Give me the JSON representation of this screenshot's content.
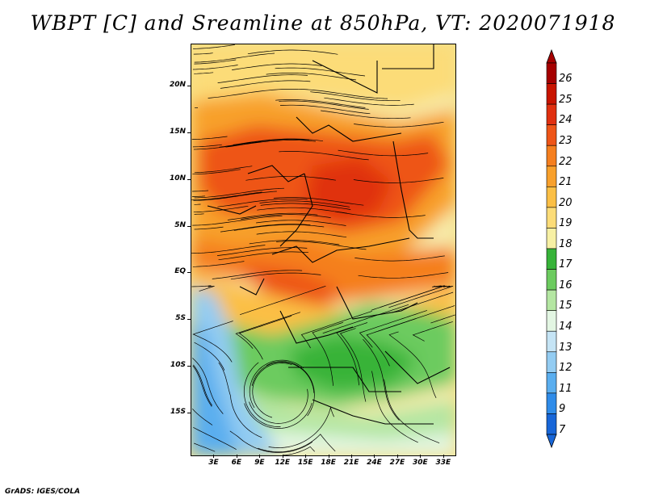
{
  "title": "WBPT [C] and Sreamline at 850hPa, VT: 2020071918",
  "footer": "GrADS: IGES/COLA",
  "map": {
    "lat_labels": [
      "20N",
      "15N",
      "10N",
      "5N",
      "EQ",
      "5S",
      "10S",
      "15S"
    ],
    "lon_labels": [
      "3E",
      "6E",
      "9E",
      "12E",
      "15E",
      "18E",
      "21E",
      "24E",
      "27E",
      "30E",
      "33E"
    ],
    "lat_values": [
      20,
      15,
      10,
      5,
      0,
      -5,
      -10,
      -15
    ],
    "lon_values": [
      3,
      6,
      9,
      12,
      15,
      18,
      21,
      24,
      27,
      30,
      33
    ],
    "extent": {
      "lon_min": 0,
      "lon_max": 34.5,
      "lat_min": -19.5,
      "lat_max": 24.5
    }
  },
  "colorbar": {
    "levels": [
      "26",
      "25",
      "24",
      "23",
      "22",
      "21",
      "20",
      "19",
      "18",
      "17",
      "16",
      "15",
      "14",
      "13",
      "12",
      "11",
      "9",
      "7"
    ],
    "colors": [
      "#a50000",
      "#c81400",
      "#e03010",
      "#ee5518",
      "#f57f1f",
      "#f8a02c",
      "#fbbf45",
      "#fcdc78",
      "#f7f0a4",
      "#37b339",
      "#6ccb5f",
      "#b4e6a2",
      "#e3f6e3",
      "#c5e4f5",
      "#93ccf2",
      "#5aaeef",
      "#2f8ce9",
      "#1866d8"
    ]
  }
}
